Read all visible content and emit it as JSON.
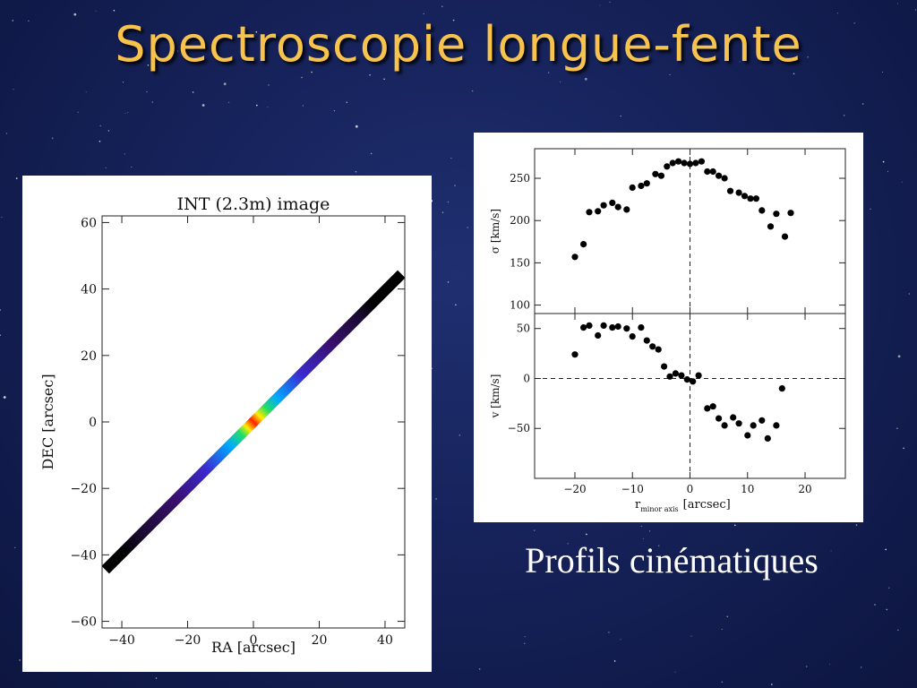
{
  "slide": {
    "title": "Spectroscopie longue-fente",
    "caption": "Profils cinématiques",
    "title_color": "#f7c34d"
  },
  "chart_data": [
    {
      "type": "line",
      "title": "INT (2.3m) image",
      "xlabel": "RA [arcsec]",
      "ylabel": "DEC [arcsec]",
      "xlim": [
        -46,
        46
      ],
      "ylim": [
        -62,
        62
      ],
      "xticks": [
        -40,
        -20,
        0,
        20,
        40
      ],
      "yticks": [
        -60,
        -40,
        -20,
        0,
        20,
        40,
        60
      ],
      "xtick_labels": [
        "−40",
        "−20",
        "0",
        "20",
        "40"
      ],
      "ytick_labels": [
        "−60",
        "−40",
        "−20",
        "0",
        "20",
        "40",
        "60"
      ],
      "slit": {
        "start": [
          -45,
          -44.5
        ],
        "end": [
          45,
          44.5
        ]
      },
      "colormap": "rainbow, peak at slit centre"
    },
    {
      "type": "scatter",
      "ylabel": "σ [km/s]",
      "xlim": [
        -27,
        27
      ],
      "ylim": [
        90,
        285
      ],
      "yticks": [
        100,
        150,
        200,
        250
      ],
      "ytick_labels": [
        "100",
        "150",
        "200",
        "250"
      ],
      "vline": 0,
      "points": [
        [
          -20,
          157
        ],
        [
          -18.5,
          172
        ],
        [
          -17.5,
          210
        ],
        [
          -16,
          211
        ],
        [
          -15,
          218
        ],
        [
          -13.5,
          221
        ],
        [
          -12.5,
          216
        ],
        [
          -11,
          213
        ],
        [
          -10,
          239
        ],
        [
          -8.5,
          241
        ],
        [
          -7.5,
          244
        ],
        [
          -6,
          255
        ],
        [
          -5,
          253
        ],
        [
          -4,
          264
        ],
        [
          -3,
          268
        ],
        [
          -2,
          270
        ],
        [
          -1,
          268
        ],
        [
          0,
          267
        ],
        [
          1,
          268
        ],
        [
          2,
          270
        ],
        [
          3,
          258
        ],
        [
          4,
          258
        ],
        [
          5,
          253
        ],
        [
          6,
          250
        ],
        [
          7,
          235
        ],
        [
          8.5,
          233
        ],
        [
          9.5,
          229
        ],
        [
          10.5,
          226
        ],
        [
          11.5,
          226
        ],
        [
          12.5,
          212
        ],
        [
          14,
          193
        ],
        [
          15,
          208
        ],
        [
          16.5,
          181
        ],
        [
          17.5,
          209
        ]
      ]
    },
    {
      "type": "scatter",
      "ylabel": "v [km/s]",
      "xlabel": "r",
      "xlabel_sub": "minor axis",
      "xlabel_unit": "[arcsec]",
      "xlim": [
        -27,
        27
      ],
      "ylim": [
        -100,
        65
      ],
      "xticks": [
        -20,
        -10,
        0,
        10,
        20
      ],
      "xtick_labels": [
        "−20",
        "−10",
        "0",
        "10",
        "20"
      ],
      "yticks": [
        -50,
        0,
        50
      ],
      "ytick_labels": [
        "−50",
        "0",
        "50"
      ],
      "vline": 0,
      "hline": 0,
      "points": [
        [
          -20,
          24
        ],
        [
          -18.5,
          51
        ],
        [
          -17.5,
          53
        ],
        [
          -16,
          43
        ],
        [
          -15,
          53
        ],
        [
          -13.5,
          51
        ],
        [
          -12.5,
          52
        ],
        [
          -11,
          50
        ],
        [
          -10,
          42
        ],
        [
          -8.5,
          51
        ],
        [
          -7.5,
          38
        ],
        [
          -6.5,
          32
        ],
        [
          -5.5,
          29
        ],
        [
          -4.5,
          12
        ],
        [
          -3.5,
          2
        ],
        [
          -2.5,
          5
        ],
        [
          -1.5,
          3
        ],
        [
          -0.5,
          -1
        ],
        [
          0.5,
          -3
        ],
        [
          1.5,
          3
        ],
        [
          3,
          -30
        ],
        [
          4,
          -28
        ],
        [
          5,
          -40
        ],
        [
          6,
          -47
        ],
        [
          7.5,
          -39
        ],
        [
          8.5,
          -45
        ],
        [
          10,
          -57
        ],
        [
          11,
          -47
        ],
        [
          12.5,
          -42
        ],
        [
          13.5,
          -60
        ],
        [
          15,
          -47
        ],
        [
          16,
          -10
        ]
      ]
    }
  ]
}
